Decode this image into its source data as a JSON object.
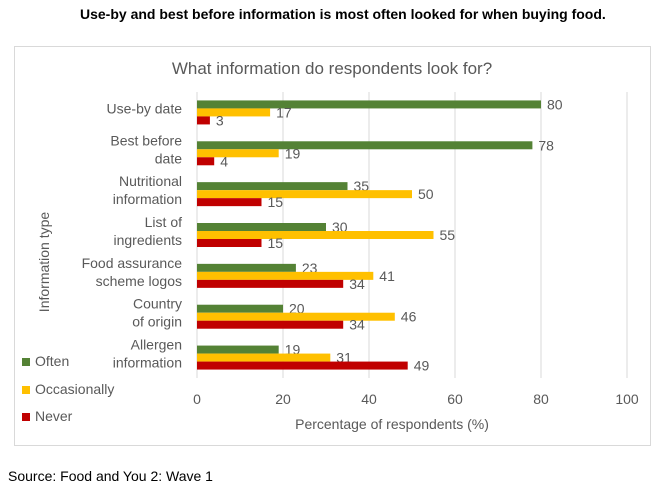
{
  "heading": "Use-by and best before information is most often looked for when buying food.",
  "source": "Source: Food and You 2: Wave 1",
  "colors": {
    "often": "#548235",
    "occasionally": "#ffc000",
    "never": "#c00000",
    "grid": "#d9d9d9",
    "text": "#595959"
  },
  "chart_data": {
    "type": "bar",
    "orientation": "horizontal",
    "title": "What information do respondents look for?",
    "xlabel": "Percentage of respondents (%)",
    "ylabel": "Information type",
    "xlim": [
      0,
      100
    ],
    "xticks": [
      "0",
      "20",
      "40",
      "60",
      "80",
      "100"
    ],
    "grid": true,
    "legend_position": "bottom-left",
    "categories": [
      [
        "Use-by date"
      ],
      [
        "Best before",
        "date"
      ],
      [
        "Nutritional",
        "information"
      ],
      [
        "List of",
        "ingredients"
      ],
      [
        "Food assurance",
        "scheme logos"
      ],
      [
        "Country",
        "of origin"
      ],
      [
        "Allergen",
        "information"
      ]
    ],
    "series": [
      {
        "name": "Often",
        "color": "#548235",
        "values": [
          80,
          78,
          35,
          30,
          23,
          20,
          19
        ]
      },
      {
        "name": "Occasionally",
        "color": "#ffc000",
        "values": [
          17,
          19,
          50,
          55,
          41,
          46,
          31
        ]
      },
      {
        "name": "Never",
        "color": "#c00000",
        "values": [
          3,
          4,
          15,
          15,
          34,
          34,
          49
        ]
      }
    ]
  }
}
